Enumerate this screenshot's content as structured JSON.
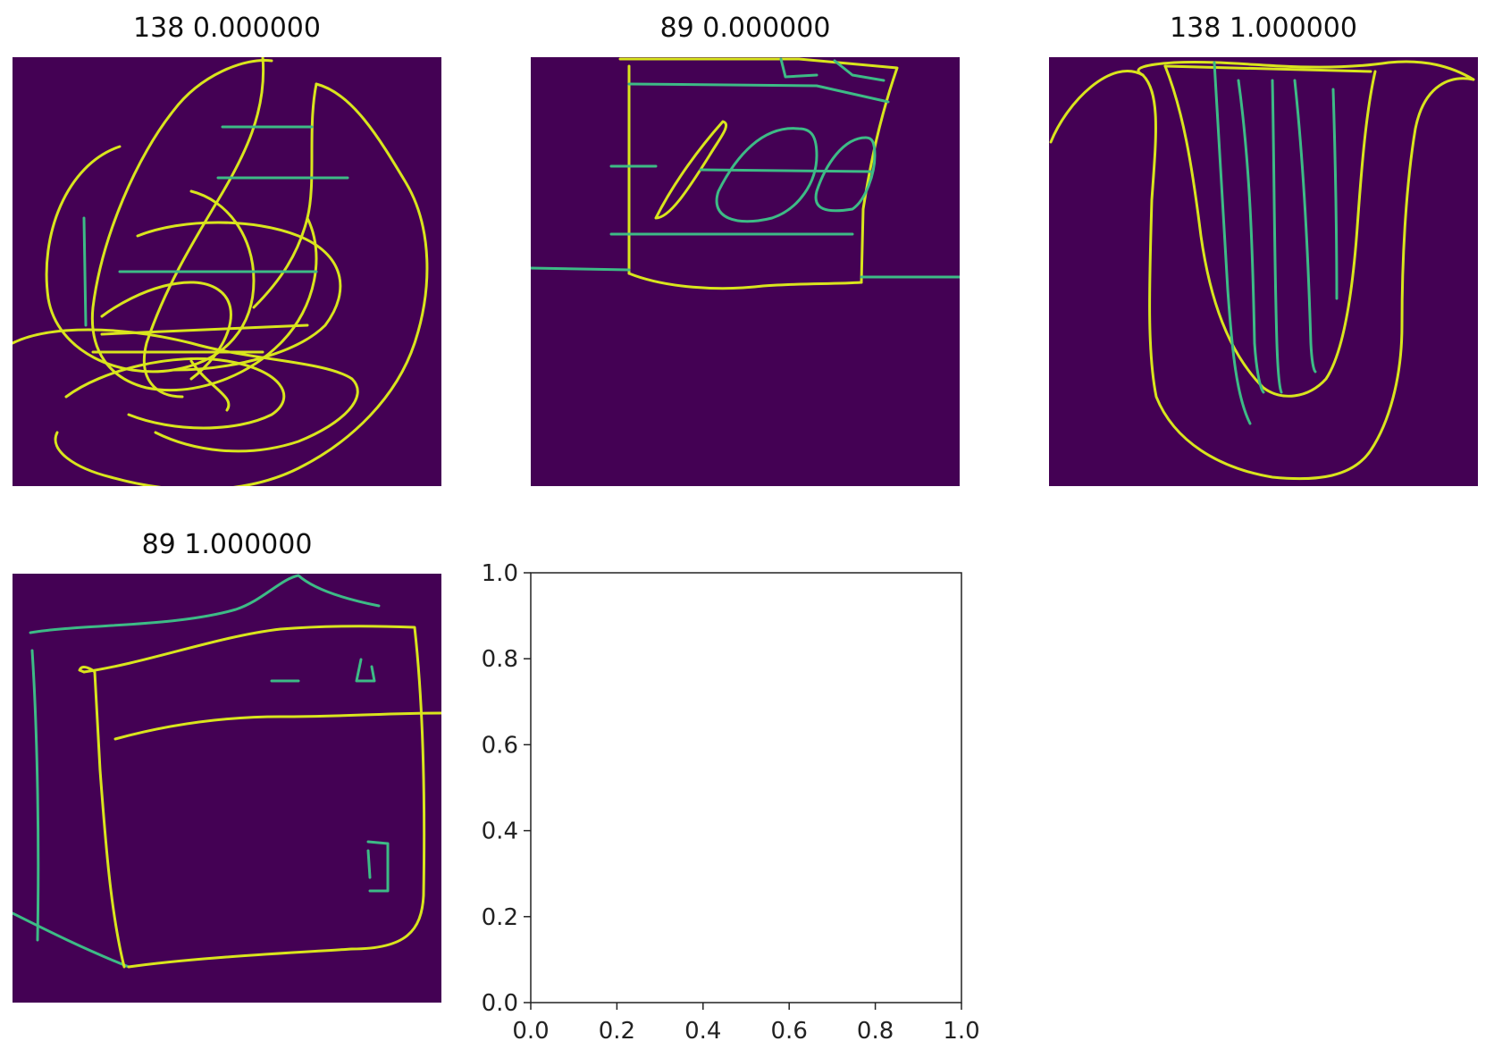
{
  "colors": {
    "background": "#440154",
    "stroke_bright": "#d9e51d",
    "stroke_mid": "#3dbb86",
    "stroke_teal": "#2a9d8f"
  },
  "panels": [
    {
      "title": "138 0.000000",
      "index": "138",
      "value": "0.000000",
      "image": "scribbled-circles-sketch"
    },
    {
      "title": "89 0.000000",
      "index": "89",
      "value": "0.000000",
      "image": "box-with-oval-shapes-sketch"
    },
    {
      "title": "138 1.000000",
      "index": "138",
      "value": "1.000000",
      "image": "u-shaped-vase-sketch"
    },
    {
      "title": "89 1.000000",
      "index": "89",
      "value": "1.000000",
      "image": "oven-box-sketch"
    }
  ],
  "chart_data": {
    "type": "scatter",
    "title": "",
    "xlabel": "",
    "ylabel": "",
    "xlim": [
      0.0,
      1.0
    ],
    "ylim": [
      0.0,
      1.0
    ],
    "x_ticks": [
      "0.0",
      "0.2",
      "0.4",
      "0.6",
      "0.8",
      "1.0"
    ],
    "y_ticks": [
      "0.0",
      "0.2",
      "0.4",
      "0.6",
      "0.8",
      "1.0"
    ],
    "series": [],
    "grid": false
  }
}
